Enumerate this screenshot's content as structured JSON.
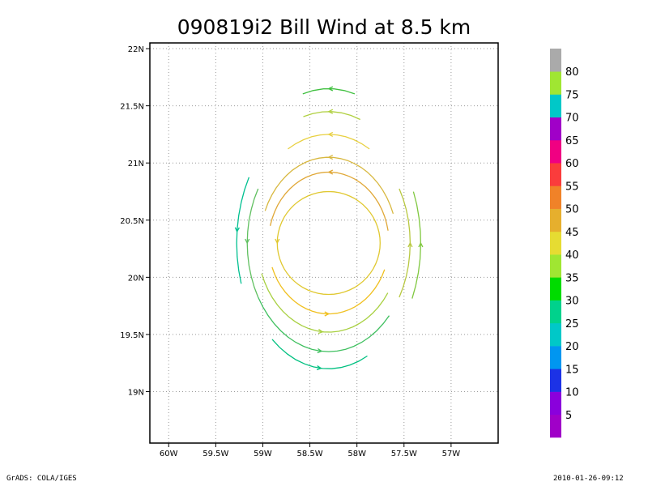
{
  "chart_data": {
    "type": "wind-barb-streamline",
    "title": "090819i2 Bill Wind at 8.5 km",
    "x": {
      "label": "",
      "range": [
        -60.2,
        -56.5
      ],
      "ticks": [
        -60,
        -59.5,
        -59,
        -58.5,
        -58,
        -57.5,
        -57
      ],
      "tick_labels": [
        "60W",
        "59.5W",
        "59W",
        "58.5W",
        "58W",
        "57.5W",
        "57W"
      ]
    },
    "y": {
      "label": "",
      "range": [
        18.55,
        22.05
      ],
      "ticks": [
        19,
        19.5,
        20,
        20.5,
        21,
        21.5,
        22
      ],
      "tick_labels": [
        "19N",
        "19.5N",
        "20N",
        "20.5N",
        "21N",
        "21.5N",
        "22N"
      ]
    },
    "grid": true,
    "center": {
      "lon": -58.3,
      "lat": 20.3
    },
    "rings": [
      {
        "radius_lat": 0.45,
        "ratio": 1.0,
        "arc_from": 0,
        "arc_to": 360,
        "color": "#e0c830"
      },
      {
        "radius_lat": 0.62,
        "ratio": 0.85,
        "arc_from": 10,
        "arc_to": 170,
        "color": "#e0a838"
      },
      {
        "radius_lat": 0.75,
        "ratio": 0.8,
        "arc_from": 20,
        "arc_to": 160,
        "color": "#d8b840"
      },
      {
        "radius_lat": 0.62,
        "ratio": 0.85,
        "arc_from": 200,
        "arc_to": 340,
        "color": "#f0c020"
      },
      {
        "radius_lat": 0.78,
        "ratio": 0.8,
        "arc_from": 200,
        "arc_to": 330,
        "color": "#a8d040"
      },
      {
        "radius_lat": 0.95,
        "ratio": 0.75,
        "arc_from": 210,
        "arc_to": 320,
        "color": "#40c060"
      },
      {
        "radius_lat": 1.1,
        "ratio": 0.7,
        "arc_from": 230,
        "arc_to": 300,
        "color": "#00c080"
      },
      {
        "radius_lat": 0.95,
        "ratio": 0.75,
        "arc_from": 60,
        "arc_to": 120,
        "color": "#e8d040"
      },
      {
        "radius_lat": 1.15,
        "ratio": 0.7,
        "arc_from": 70,
        "arc_to": 110,
        "color": "#b0d040"
      },
      {
        "radius_lat": 1.35,
        "ratio": 0.65,
        "arc_from": 75,
        "arc_to": 105,
        "color": "#40c040"
      },
      {
        "radius_lat": 0.95,
        "ratio": 0.75,
        "arc_from": 150,
        "arc_to": 210,
        "color": "#60c060"
      },
      {
        "radius_lat": 1.15,
        "ratio": 0.7,
        "arc_from": 150,
        "arc_to": 200,
        "color": "#00c090"
      },
      {
        "radius_lat": 0.95,
        "ratio": 0.75,
        "arc_from": 330,
        "arc_to": 30,
        "color": "#b8c840"
      },
      {
        "radius_lat": 1.15,
        "ratio": 0.7,
        "arc_from": 335,
        "arc_to": 25,
        "color": "#80c840"
      }
    ],
    "legend": {
      "type": "colorbar",
      "placement": "right",
      "labels": [
        "5",
        "10",
        "15",
        "20",
        "25",
        "30",
        "35",
        "40",
        "45",
        "50",
        "55",
        "60",
        "65",
        "70",
        "75",
        "80"
      ],
      "colors": [
        "#a000c8",
        "#8a00dc",
        "#1c32e6",
        "#0096f0",
        "#00c8c8",
        "#00d28c",
        "#00dc00",
        "#a0e632",
        "#e6dc32",
        "#e6af2d",
        "#f08228",
        "#fa3c3c",
        "#f00082",
        "#a000c8",
        "#00c8c8",
        "#a0e632",
        "#aaaaaa"
      ]
    }
  },
  "footer": {
    "left": "GrADS: COLA/IGES",
    "right": "2010-01-26-09:12"
  }
}
